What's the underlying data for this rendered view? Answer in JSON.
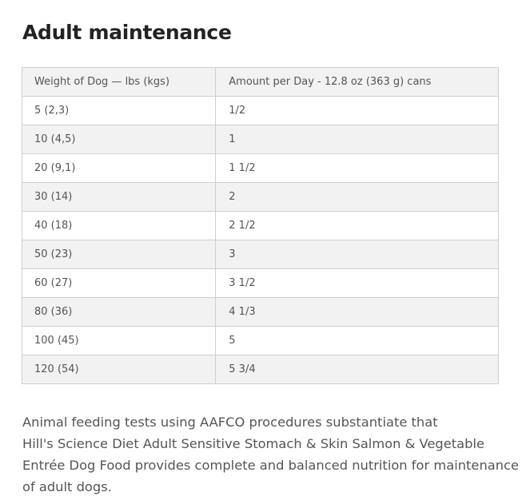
{
  "title": "Adult maintenance",
  "table": {
    "header": [
      "Weight of Dog — lbs (kgs)",
      "Amount per Day - 12.8 oz (363 g) cans"
    ],
    "rows": [
      [
        "5 (2,3)",
        "1/2"
      ],
      [
        "10 (4,5)",
        "1"
      ],
      [
        "20 (9,1)",
        "1 1/2"
      ],
      [
        "30 (14)",
        "2"
      ],
      [
        "40 (18)",
        "2 1/2"
      ],
      [
        "50 (23)",
        "3"
      ],
      [
        "60 (27)",
        "3 1/2"
      ],
      [
        "80 (36)",
        "4 1/3"
      ],
      [
        "100 (45)",
        "5"
      ],
      [
        "120 (54)",
        "5 3/4"
      ]
    ]
  },
  "paragraph": [
    "Animal feeding tests using AAFCO procedures substantiate that",
    "Hill's Science Diet Adult Sensitive Stomach & Skin Salmon & Vegetable",
    "Entrée Dog Food provides complete and balanced nutrition for maintenance",
    "of adult dogs."
  ]
}
